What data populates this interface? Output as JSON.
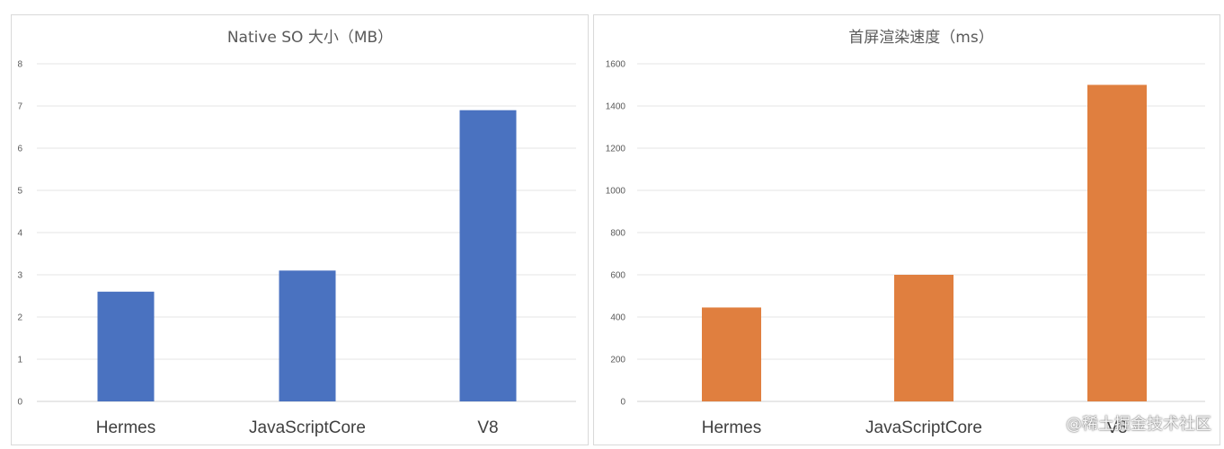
{
  "chart_data": [
    {
      "type": "bar",
      "title": "Native SO 大小（MB）",
      "categories": [
        "Hermes",
        "JavaScriptCore",
        "V8"
      ],
      "values": [
        2.6,
        3.1,
        6.9
      ],
      "ylim": [
        0,
        8
      ],
      "yticks": [
        0,
        1,
        2,
        3,
        4,
        5,
        6,
        7,
        8
      ],
      "grid": true,
      "color": "#4a72c0"
    },
    {
      "type": "bar",
      "title": "首屏渲染速度（ms）",
      "categories": [
        "Hermes",
        "JavaScriptCore",
        "V8"
      ],
      "values": [
        445,
        600,
        1500
      ],
      "ylim": [
        0,
        1600
      ],
      "yticks": [
        0,
        200,
        400,
        600,
        800,
        1000,
        1200,
        1400,
        1600
      ],
      "grid": true,
      "color": "#e07f3f"
    }
  ],
  "watermark": "@稀土掘金技术社区"
}
